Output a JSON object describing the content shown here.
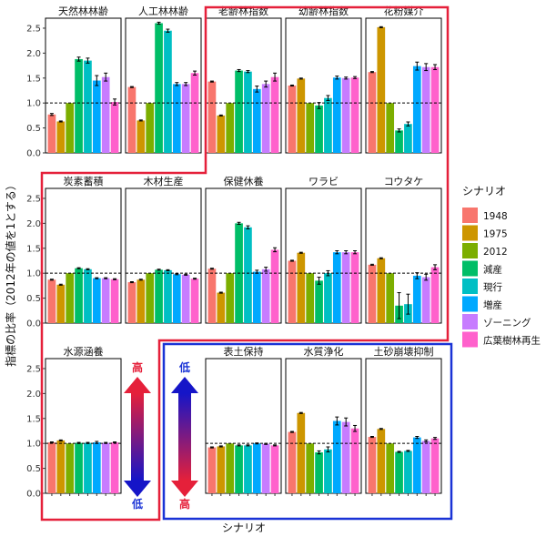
{
  "chart_data": {
    "type": "bar",
    "ylabel": "指標の比率（2012年の値を1とする）",
    "xlabel": "シナリオ",
    "ylim": [
      0,
      2.7
    ],
    "yticks": [
      0.0,
      0.5,
      1.0,
      1.5,
      2.0,
      2.5
    ],
    "ytick_labels": [
      "0.0",
      "0.5",
      "1.0",
      "1.5",
      "2.0",
      "2.5"
    ],
    "reference_line": 1.0,
    "legend": {
      "title": "シナリオ",
      "placement": "right",
      "entries": [
        "1948",
        "1975",
        "2012",
        "減産",
        "現行",
        "増産",
        "ゾーニング",
        "広葉樹林再生"
      ],
      "colors": [
        "#F8766D",
        "#CD9600",
        "#7CAE00",
        "#00BE67",
        "#00BFC4",
        "#00A9FF",
        "#C77CFF",
        "#FF61CC"
      ]
    },
    "panels": [
      {
        "title": "天然林林齢",
        "values": [
          0.77,
          0.63,
          1.0,
          1.88,
          1.85,
          1.45,
          1.52,
          1.02
        ],
        "errors": [
          0.02,
          0.01,
          0,
          0.04,
          0.05,
          0.1,
          0.08,
          0.06
        ]
      },
      {
        "title": "人工林林齢",
        "values": [
          1.32,
          0.65,
          1.0,
          2.6,
          2.45,
          1.38,
          1.38,
          1.6
        ],
        "errors": [
          0.01,
          0.01,
          0,
          0.02,
          0.03,
          0.03,
          0.03,
          0.04
        ]
      },
      {
        "title": "老齢林指数",
        "values": [
          1.43,
          0.75,
          1.0,
          1.65,
          1.63,
          1.28,
          1.38,
          1.52
        ],
        "errors": [
          0.01,
          0.01,
          0,
          0.02,
          0.02,
          0.06,
          0.06,
          0.08
        ]
      },
      {
        "title": "幼齢林指数",
        "values": [
          1.35,
          1.49,
          1.0,
          0.95,
          1.1,
          1.51,
          1.5,
          1.51
        ],
        "errors": [
          0.01,
          0.01,
          0,
          0.06,
          0.05,
          0.03,
          0.02,
          0.02
        ]
      },
      {
        "title": "花粉媒介",
        "values": [
          1.62,
          2.52,
          1.0,
          0.45,
          0.58,
          1.74,
          1.72,
          1.72
        ],
        "errors": [
          0.01,
          0.01,
          0,
          0.03,
          0.04,
          0.08,
          0.07,
          0.05
        ]
      },
      {
        "title": "炭素蓄積",
        "values": [
          0.87,
          0.77,
          1.0,
          1.1,
          1.08,
          0.9,
          0.9,
          0.88
        ],
        "errors": [
          0.01,
          0.01,
          0,
          0.01,
          0.01,
          0.01,
          0.01,
          0.01
        ]
      },
      {
        "title": "木材生産",
        "values": [
          0.82,
          0.87,
          1.0,
          1.07,
          1.06,
          0.98,
          0.97,
          0.89
        ],
        "errors": [
          0.01,
          0.01,
          0,
          0.01,
          0.01,
          0.01,
          0.01,
          0.01
        ]
      },
      {
        "title": "保健休養",
        "values": [
          1.09,
          0.61,
          1.0,
          2.0,
          1.92,
          1.03,
          1.08,
          1.47
        ],
        "errors": [
          0.01,
          0.01,
          0,
          0.02,
          0.03,
          0.03,
          0.04,
          0.04
        ]
      },
      {
        "title": "ワラビ",
        "values": [
          1.25,
          1.41,
          1.0,
          0.85,
          1.0,
          1.42,
          1.42,
          1.42
        ],
        "errors": [
          0.01,
          0.01,
          0,
          0.07,
          0.05,
          0.03,
          0.03,
          0.03
        ]
      },
      {
        "title": "コウタケ",
        "values": [
          1.17,
          1.3,
          1.0,
          0.35,
          0.38,
          0.95,
          0.92,
          1.12
        ],
        "errors": [
          0.01,
          0.01,
          0,
          0.26,
          0.2,
          0.06,
          0.06,
          0.05
        ]
      },
      {
        "title": "水源涵養",
        "values": [
          1.02,
          1.06,
          1.0,
          1.01,
          1.01,
          1.02,
          1.01,
          1.02
        ],
        "errors": [
          0.01,
          0.01,
          0,
          0.01,
          0.01,
          0.02,
          0.01,
          0.01
        ]
      },
      {
        "title": "表土保持",
        "values": [
          0.92,
          0.94,
          1.0,
          0.96,
          0.96,
          1.0,
          0.99,
          0.96
        ],
        "errors": [
          0.01,
          0.01,
          0,
          0.01,
          0.01,
          0.01,
          0.01,
          0.01
        ]
      },
      {
        "title": "水質浄化",
        "values": [
          1.23,
          1.61,
          1.0,
          0.82,
          0.88,
          1.45,
          1.43,
          1.3
        ],
        "errors": [
          0.01,
          0.01,
          0,
          0.03,
          0.05,
          0.08,
          0.08,
          0.06
        ]
      },
      {
        "title": "土砂崩壊抑制",
        "values": [
          1.13,
          1.29,
          1.0,
          0.83,
          0.85,
          1.12,
          1.05,
          1.1
        ],
        "errors": [
          0.01,
          0.01,
          0,
          0.01,
          0.01,
          0.02,
          0.02,
          0.02
        ]
      }
    ],
    "annotations": {
      "red_arrow_top": "高",
      "red_arrow_bottom": "低",
      "blue_arrow_top": "低",
      "blue_arrow_bottom": "高"
    }
  }
}
